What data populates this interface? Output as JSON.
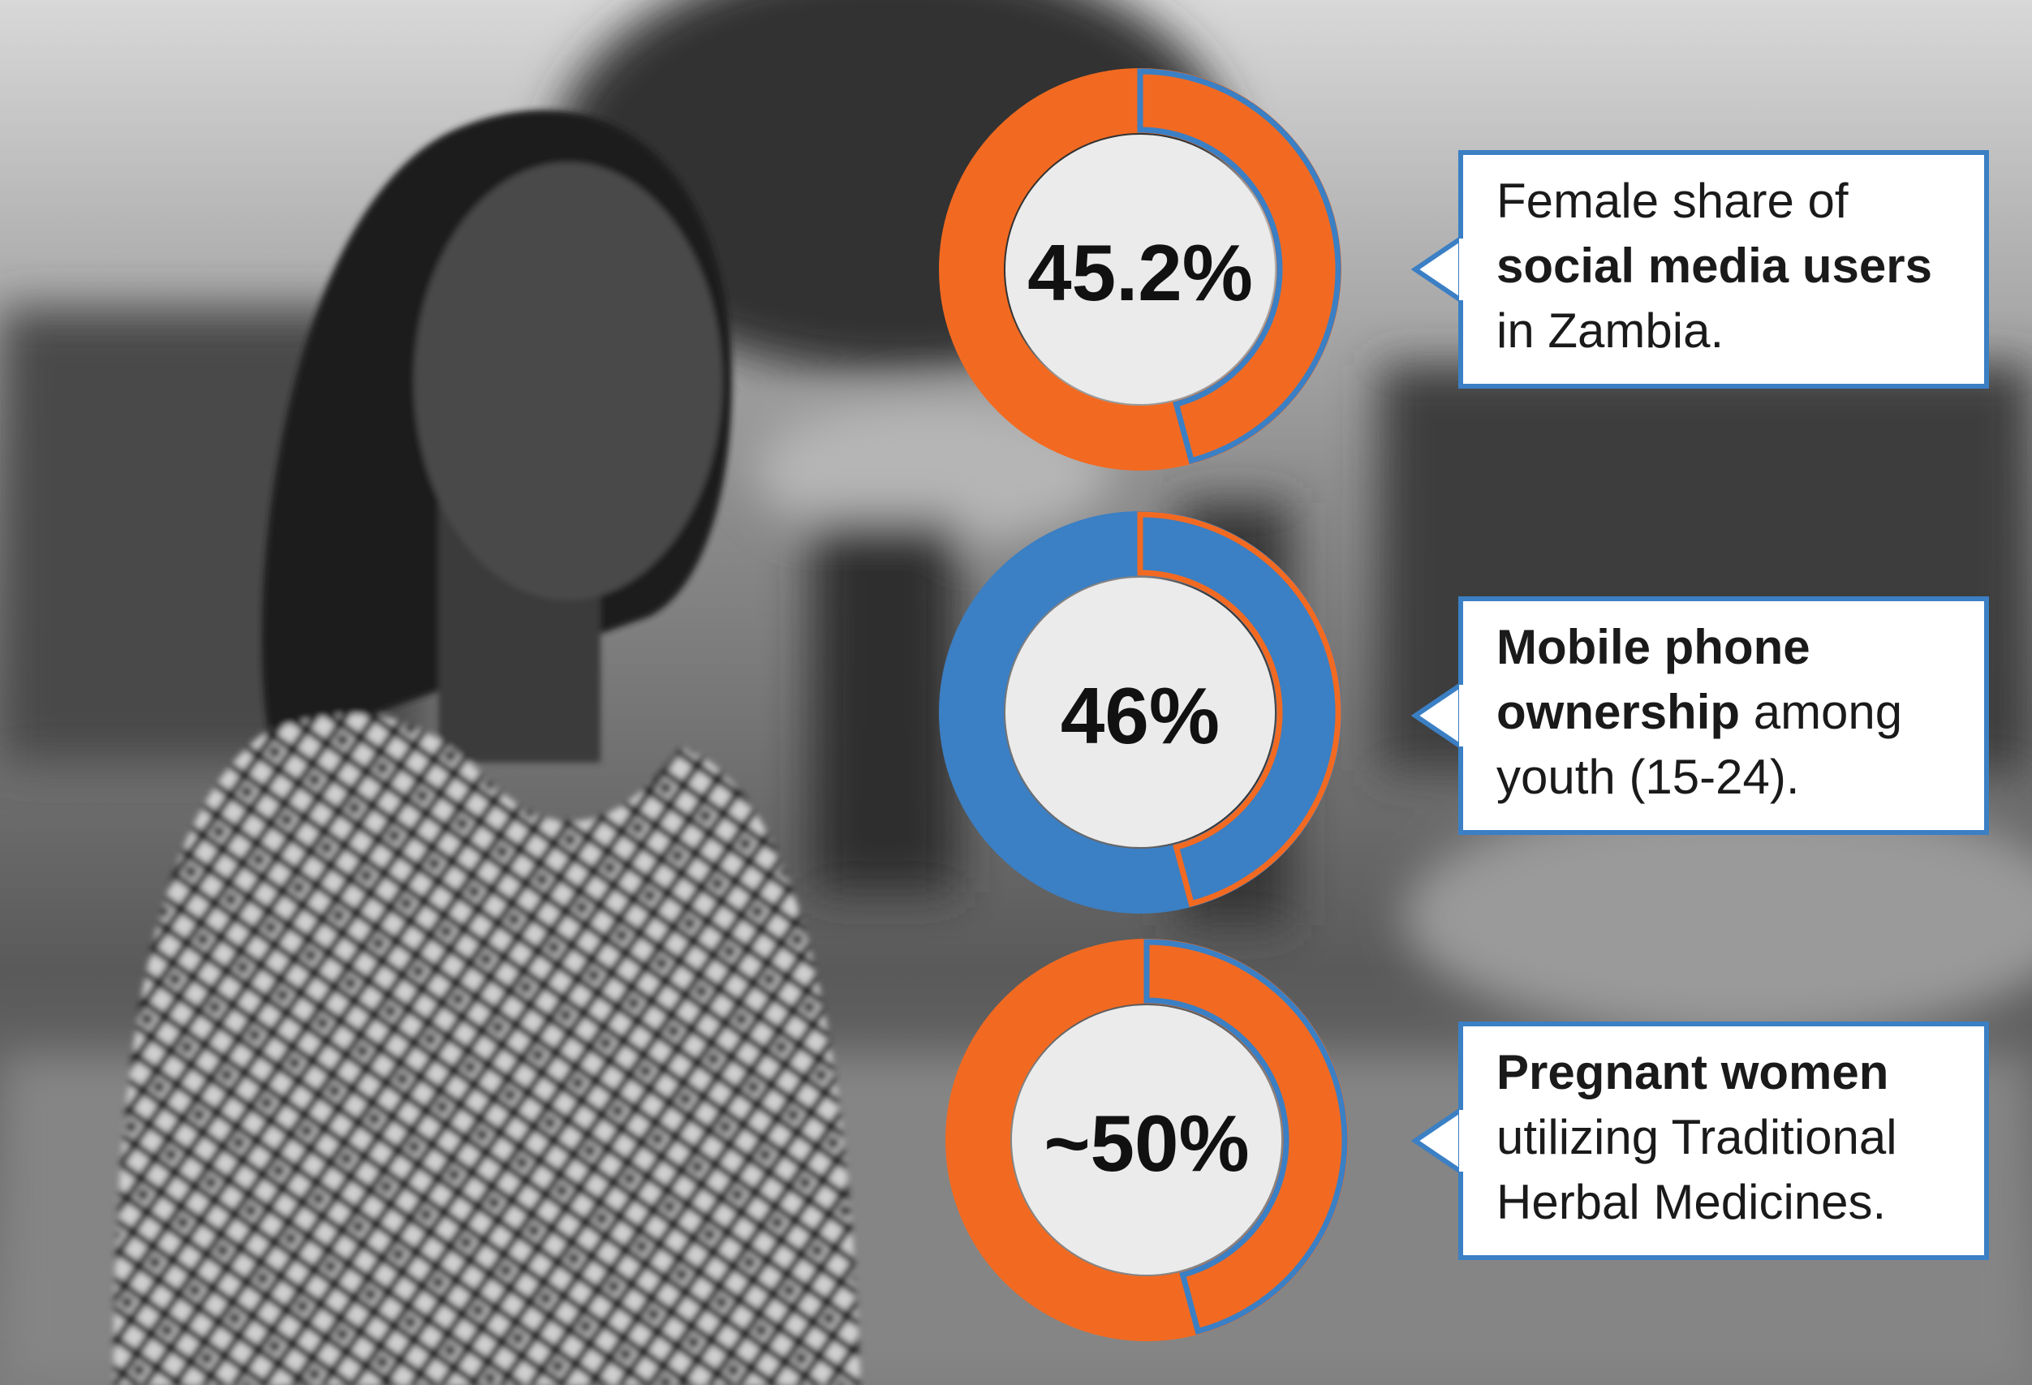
{
  "stats": [
    {
      "value": "45.2%",
      "lines": [
        [
          "Female share of"
        ],
        [
          "social media users"
        ],
        [
          "in Zambia."
        ]
      ]
    },
    {
      "value": "46%",
      "lines": [
        [
          "Mobile phone"
        ],
        [
          "ownership",
          " among"
        ],
        [
          "youth (15-24)."
        ]
      ]
    },
    {
      "value": "~50%",
      "lines": [
        [
          "Pregnant women"
        ],
        [
          "utilizing Traditional"
        ],
        [
          "Herbal Medicines."
        ]
      ]
    }
  ]
}
